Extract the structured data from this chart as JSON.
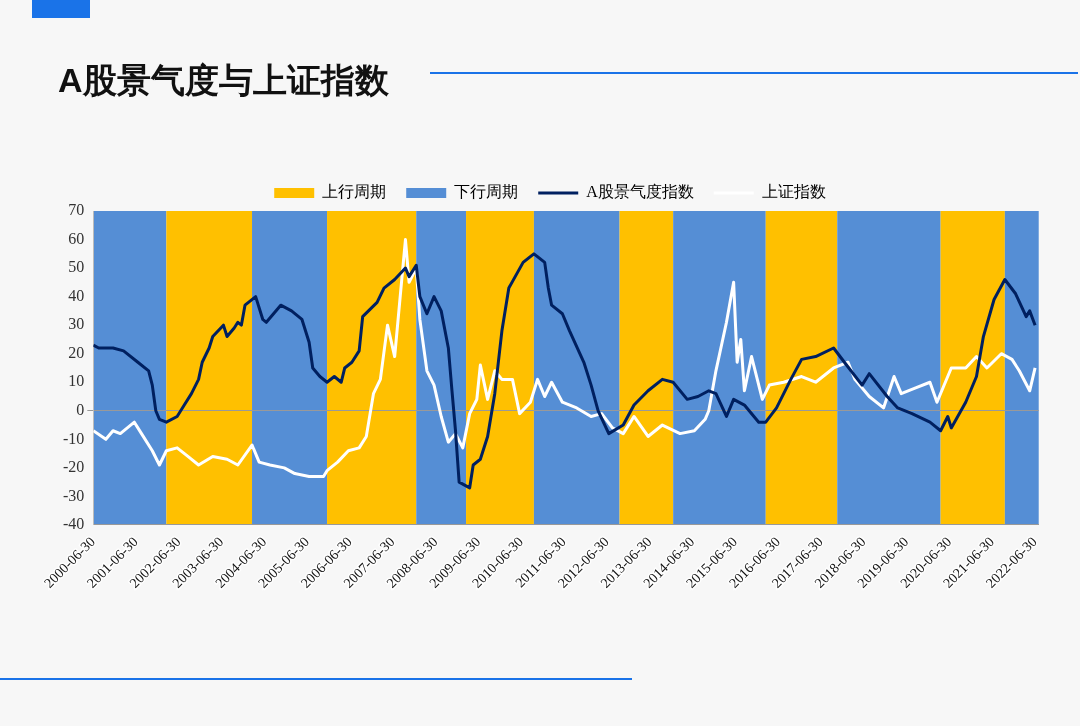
{
  "chart_data": {
    "type": "line",
    "title": "A股景气度与上证指数",
    "legend": "top",
    "marker": "none",
    "line_style": "solid",
    "xlim": [
      "2000-06-30",
      "2022-07-31"
    ],
    "xticks": [
      "2000-06-30",
      "2001-06-30",
      "2002-06-30",
      "2003-06-30",
      "2004-06-30",
      "2005-06-30",
      "2006-06-30",
      "2007-06-30",
      "2008-06-30",
      "2009-06-30",
      "2010-06-30",
      "2011-06-30",
      "2012-06-30",
      "2013-06-30",
      "2014-06-30",
      "2015-06-30",
      "2016-06-30",
      "2017-06-30",
      "2018-06-30",
      "2019-06-30",
      "2020-06-30",
      "2021-06-30",
      "2022-06-30"
    ],
    "ylim": [
      -40,
      70
    ],
    "yticks": [
      -40,
      -30,
      -20,
      -10,
      0,
      10,
      20,
      30,
      40,
      50,
      60,
      70
    ],
    "bands": [
      {
        "axis": "x",
        "from": "2000-06-30",
        "to": "2002-03",
        "color": "#558ed5"
      },
      {
        "axis": "x",
        "from": "2002-03",
        "to": "2004-03",
        "label": "上行周期",
        "color": "#ffc000"
      },
      {
        "axis": "x",
        "from": "2004-03",
        "to": "2005-12",
        "label": "下行周期",
        "color": "#558ed5"
      },
      {
        "axis": "x",
        "from": "2005-12",
        "to": "2008-01",
        "color": "#ffc000"
      },
      {
        "axis": "x",
        "from": "2008-01",
        "to": "2009-03",
        "color": "#558ed5"
      },
      {
        "axis": "x",
        "from": "2009-03",
        "to": "2010-10",
        "color": "#ffc000"
      },
      {
        "axis": "x",
        "from": "2010-10",
        "to": "2012-10",
        "color": "#558ed5"
      },
      {
        "axis": "x",
        "from": "2012-10",
        "to": "2014-01",
        "color": "#ffc000"
      },
      {
        "axis": "x",
        "from": "2014-01",
        "to": "2016-03",
        "color": "#558ed5"
      },
      {
        "axis": "x",
        "from": "2016-03",
        "to": "2017-11",
        "color": "#ffc000"
      },
      {
        "axis": "x",
        "from": "2017-11",
        "to": "2020-04",
        "color": "#558ed5"
      },
      {
        "axis": "x",
        "from": "2020-04",
        "to": "2021-10",
        "color": "#ffc000"
      },
      {
        "axis": "x",
        "from": "2021-10",
        "to": "2022-07-31",
        "color": "#558ed5"
      }
    ],
    "series": [
      {
        "name": "A股景气度指数",
        "color": "#002060",
        "x": [
          "2000-06-30",
          "2000-08",
          "2000-12",
          "2001-03",
          "2001-07",
          "2001-10",
          "2001-11",
          "2001-12",
          "2002-01",
          "2002-03",
          "2002-06",
          "2002-08",
          "2002-10",
          "2002-12",
          "2003-01",
          "2003-03",
          "2003-04",
          "2003-07",
          "2003-08",
          "2003-10",
          "2003-11",
          "2003-12",
          "2004-01",
          "2004-04",
          "2004-06",
          "2004-07",
          "2004-11",
          "2005-02",
          "2005-05",
          "2005-07",
          "2005-08",
          "2005-10",
          "2005-12",
          "2006-02",
          "2006-04",
          "2006-05",
          "2006-07",
          "2006-09",
          "2006-10",
          "2007-02",
          "2007-04",
          "2007-07",
          "2007-10",
          "2007-11",
          "2008-01",
          "2008-02",
          "2008-04",
          "2008-06",
          "2008-08",
          "2008-10",
          "2008-11",
          "2008-12",
          "2009-01",
          "2009-04",
          "2009-05",
          "2009-07",
          "2009-09",
          "2009-11",
          "2010-01",
          "2010-03",
          "2010-07",
          "2010-10",
          "2011-01",
          "2011-02",
          "2011-03",
          "2011-06",
          "2011-08",
          "2011-12",
          "2012-02",
          "2012-04",
          "2012-07",
          "2012-11",
          "2013-02",
          "2013-06",
          "2013-10",
          "2014-01",
          "2014-05",
          "2014-08",
          "2014-11",
          "2015-01",
          "2015-04",
          "2015-06",
          "2015-09",
          "2016-01",
          "2016-03",
          "2016-06",
          "2016-10",
          "2017-01",
          "2017-05",
          "2017-10",
          "2018-01",
          "2018-06",
          "2018-08",
          "2019-01",
          "2019-04",
          "2019-08",
          "2020-01",
          "2020-04",
          "2020-06",
          "2020-07",
          "2020-11",
          "2021-02",
          "2021-04",
          "2021-07",
          "2021-10",
          "2022-01",
          "2022-04",
          "2022-05",
          "2022-06-30"
        ],
        "values": [
          23,
          22,
          22,
          21,
          17,
          14,
          9,
          0,
          -3,
          -4,
          -2,
          2,
          6,
          11,
          17,
          22,
          26,
          30,
          26,
          29,
          31,
          30,
          37,
          40,
          32,
          31,
          37,
          35,
          32,
          24,
          15,
          12,
          10,
          12,
          10,
          15,
          17,
          21,
          33,
          38,
          43,
          46,
          50,
          47,
          51,
          40,
          34,
          40,
          35,
          22,
          7,
          -7,
          -25,
          -27,
          -19,
          -17,
          -9,
          6,
          28,
          43,
          52,
          55,
          52,
          43,
          37,
          34,
          28,
          17,
          9,
          0,
          -8,
          -5,
          2,
          7,
          11,
          10,
          4,
          5,
          7,
          6,
          -2,
          4,
          2,
          -4,
          -4,
          1,
          11,
          18,
          19,
          22,
          17,
          9,
          13,
          5,
          1,
          -1,
          -4,
          -7,
          -2,
          -6,
          3,
          12,
          26,
          39,
          46,
          41,
          33,
          35,
          30
        ]
      },
      {
        "name": "上证指数",
        "color": "#ffffff",
        "x": [
          "2000-06-30",
          "2000-10",
          "2000-12",
          "2001-02",
          "2001-06",
          "2001-08",
          "2001-11",
          "2002-01",
          "2002-03",
          "2002-06",
          "2002-09",
          "2002-12",
          "2003-04",
          "2003-08",
          "2003-11",
          "2004-03",
          "2004-05",
          "2004-08",
          "2004-12",
          "2005-03",
          "2005-07",
          "2005-11",
          "2005-12",
          "2006-03",
          "2006-06",
          "2006-09",
          "2006-11",
          "2007-01",
          "2007-03",
          "2007-05",
          "2007-07",
          "2007-10",
          "2007-11",
          "2008-01",
          "2008-02",
          "2008-04",
          "2008-06",
          "2008-08",
          "2008-10",
          "2008-12",
          "2009-02",
          "2009-04",
          "2009-06",
          "2009-07",
          "2009-09",
          "2009-11",
          "2010-01",
          "2010-04",
          "2010-06",
          "2010-09",
          "2010-11",
          "2011-01",
          "2011-03",
          "2011-06",
          "2011-10",
          "2012-02",
          "2012-05",
          "2012-08",
          "2012-11",
          "2013-02",
          "2013-06",
          "2013-10",
          "2014-03",
          "2014-07",
          "2014-10",
          "2014-11",
          "2015-01",
          "2015-04",
          "2015-06",
          "2015-07",
          "2015-08",
          "2015-09",
          "2015-11",
          "2016-02",
          "2016-04",
          "2016-08",
          "2017-01",
          "2017-05",
          "2017-10",
          "2018-02",
          "2018-04",
          "2018-08",
          "2018-12",
          "2019-03",
          "2019-05",
          "2019-09",
          "2020-01",
          "2020-03",
          "2020-07",
          "2020-11",
          "2021-02",
          "2021-05",
          "2021-09",
          "2021-12",
          "2022-02",
          "2022-05",
          "2022-06-30"
        ],
        "values": [
          -7,
          -10,
          -7,
          -8,
          -4,
          -8,
          -14,
          -19,
          -14,
          -13,
          -16,
          -19,
          -16,
          -17,
          -19,
          -12,
          -18,
          -19,
          -20,
          -22,
          -23,
          -23,
          -21,
          -18,
          -14,
          -13,
          -9,
          6,
          11,
          30,
          19,
          60,
          45,
          50,
          32,
          14,
          9,
          -2,
          -11,
          -8,
          -13,
          -1,
          4,
          16,
          4,
          14,
          11,
          11,
          -1,
          3,
          11,
          5,
          10,
          3,
          1,
          -2,
          -1,
          -6,
          -8,
          -2,
          -9,
          -5,
          -8,
          -7,
          -3,
          0,
          14,
          31,
          45,
          17,
          25,
          7,
          19,
          4,
          9,
          10,
          12,
          10,
          15,
          17,
          11,
          5,
          1,
          12,
          6,
          8,
          10,
          3,
          15,
          15,
          19,
          15,
          20,
          18,
          14,
          7,
          15
        ]
      }
    ]
  }
}
